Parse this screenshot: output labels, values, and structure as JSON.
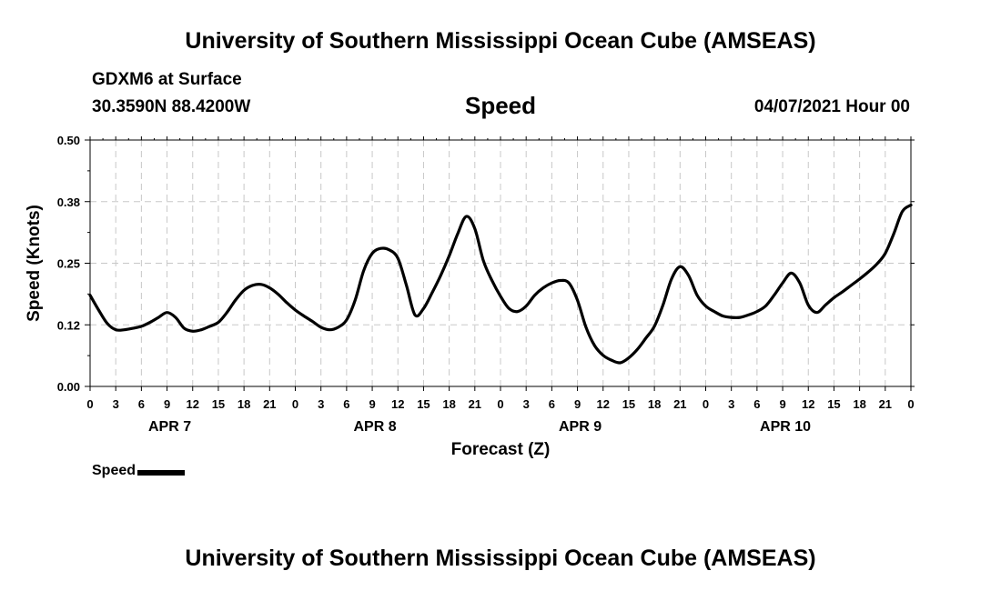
{
  "header": {
    "title_top": "University of Southern Mississippi Ocean Cube (AMSEAS)",
    "title_bottom": "University of Southern Mississippi Ocean Cube (AMSEAS)",
    "station": "GDXM6 at Surface",
    "coords": "30.3590N  88.4200W",
    "variable": "Speed",
    "datetime": "04/07/2021 Hour 00"
  },
  "legend": {
    "label": "Speed"
  },
  "chart_data": {
    "type": "line",
    "title": "Speed",
    "xlabel": "Forecast (Z)",
    "ylabel": "Speed (Knots)",
    "ylim": [
      0,
      0.5
    ],
    "xlim": [
      0,
      96
    ],
    "yticks": [
      0.0,
      0.125,
      0.25,
      0.375,
      0.5
    ],
    "ytick_labels": [
      "0.00",
      "0.12",
      "0.25",
      "0.38",
      "0.50"
    ],
    "xticks": [
      0,
      3,
      6,
      9,
      12,
      15,
      18,
      21,
      24,
      27,
      30,
      33,
      36,
      39,
      42,
      45,
      48,
      51,
      54,
      57,
      60,
      63,
      66,
      69,
      72,
      75,
      78,
      81,
      84,
      87,
      90,
      93,
      96
    ],
    "xtick_labels": [
      "0",
      "3",
      "6",
      "9",
      "12",
      "15",
      "18",
      "21",
      "0",
      "3",
      "6",
      "9",
      "12",
      "15",
      "18",
      "21",
      "0",
      "3",
      "6",
      "9",
      "12",
      "15",
      "18",
      "21",
      "0",
      "3",
      "6",
      "9",
      "12",
      "15",
      "18",
      "21",
      "0"
    ],
    "day_labels": [
      {
        "label": "APR 7",
        "x": 9
      },
      {
        "label": "APR 8",
        "x": 33
      },
      {
        "label": "APR 9",
        "x": 57
      },
      {
        "label": "APR 10",
        "x": 81
      }
    ],
    "grid": true,
    "series": [
      {
        "name": "Speed",
        "color": "#000000",
        "x": [
          0,
          1,
          2,
          3,
          4,
          5,
          6,
          7,
          8,
          9,
          10,
          11,
          12,
          13,
          14,
          15,
          16,
          17,
          18,
          19,
          20,
          21,
          22,
          23,
          24,
          25,
          26,
          27,
          28,
          29,
          30,
          31,
          32,
          33,
          34,
          35,
          36,
          37,
          38,
          39,
          40,
          41,
          42,
          43,
          44,
          45,
          46,
          47,
          48,
          49,
          50,
          51,
          52,
          53,
          54,
          55,
          56,
          57,
          58,
          59,
          60,
          61,
          62,
          63,
          64,
          65,
          66,
          67,
          68,
          69,
          70,
          71,
          72,
          73,
          74,
          75,
          76,
          77,
          78,
          79,
          80,
          81,
          82,
          83,
          84,
          85,
          86,
          87,
          88,
          89,
          90,
          91,
          92,
          93,
          94,
          95,
          96
        ],
        "values": [
          0.185,
          0.155,
          0.128,
          0.115,
          0.115,
          0.118,
          0.122,
          0.13,
          0.14,
          0.15,
          0.14,
          0.118,
          0.112,
          0.115,
          0.122,
          0.13,
          0.15,
          0.175,
          0.195,
          0.205,
          0.207,
          0.2,
          0.187,
          0.17,
          0.155,
          0.143,
          0.132,
          0.12,
          0.115,
          0.12,
          0.135,
          0.175,
          0.235,
          0.27,
          0.28,
          0.277,
          0.26,
          0.205,
          0.145,
          0.158,
          0.19,
          0.225,
          0.265,
          0.31,
          0.345,
          0.32,
          0.255,
          0.215,
          0.183,
          0.158,
          0.152,
          0.163,
          0.185,
          0.2,
          0.21,
          0.215,
          0.21,
          0.175,
          0.12,
          0.083,
          0.063,
          0.053,
          0.048,
          0.058,
          0.075,
          0.098,
          0.122,
          0.165,
          0.218,
          0.243,
          0.225,
          0.185,
          0.163,
          0.152,
          0.143,
          0.14,
          0.14,
          0.145,
          0.152,
          0.163,
          0.185,
          0.21,
          0.23,
          0.21,
          0.165,
          0.15,
          0.165,
          0.18,
          0.192,
          0.205,
          0.218,
          0.232,
          0.248,
          0.27,
          0.31,
          0.355,
          0.368
        ]
      }
    ]
  }
}
